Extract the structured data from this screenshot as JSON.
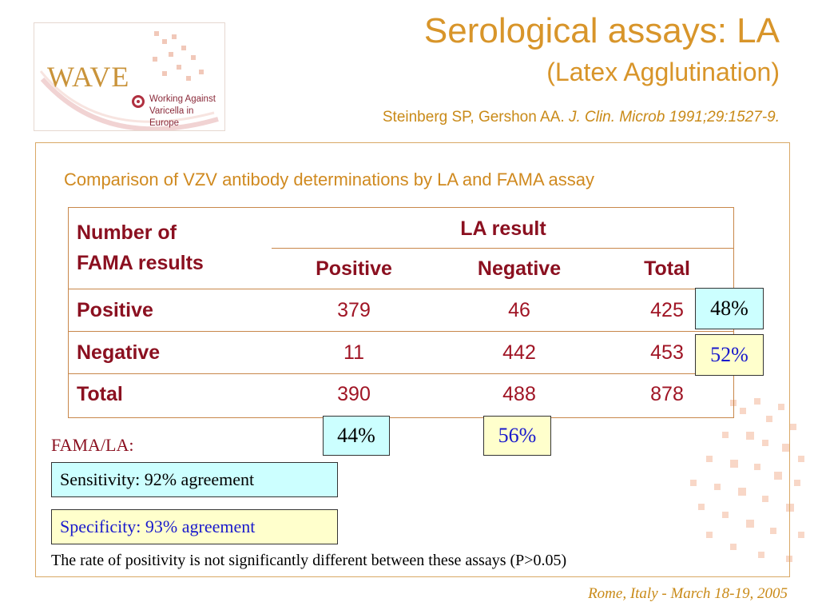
{
  "logo": {
    "name": "WAVE",
    "line1": "Working Against",
    "line2": "Varicella in Europe"
  },
  "header": {
    "title": "Serological assays: LA",
    "subtitle": "(Latex Agglutination)",
    "citation_authors": "Steinberg SP, Gershon AA.",
    "citation_journal": "J. Clin. Microb 1991;29:1527-9."
  },
  "caption": "Comparison of VZV antibody determinations by LA and FAMA assay",
  "table": {
    "row_header_line1": "Number of",
    "row_header_line2": "FAMA results",
    "group_header": "LA result",
    "columns": [
      "Positive",
      "Negative",
      "Total"
    ],
    "rows": [
      {
        "label": "Positive",
        "values": [
          "379",
          "46",
          "425"
        ]
      },
      {
        "label": "Negative",
        "values": [
          "11",
          "442",
          "453"
        ]
      },
      {
        "label": "Total",
        "values": [
          "390",
          "488",
          "878"
        ]
      }
    ]
  },
  "percentages": {
    "row_positive": "48%",
    "row_negative": "52%",
    "col_positive": "44%",
    "col_negative": "56%"
  },
  "fama_label": "FAMA/LA:",
  "sensitivity": "Sensitivity:  92% agreement",
  "specificity": "Specificity:  93% agreement",
  "footnote": "The rate of positivity is not significantly different between these assays (P>0.05)",
  "venue": "Rome, Italy - March 18-19, 2005",
  "colors": {
    "title": "#d8952a",
    "table_text": "#8b1020",
    "cyan_box": "#ccffff",
    "yellow_box": "#ffffcc"
  }
}
